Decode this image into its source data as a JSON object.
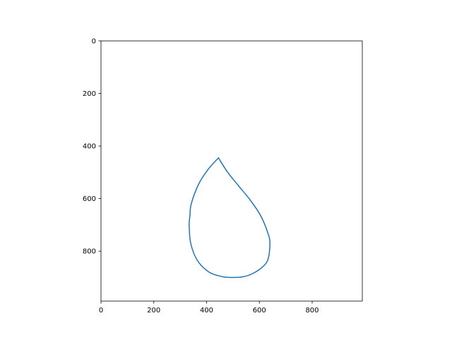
{
  "chart_data": {
    "type": "line",
    "title": "",
    "xlabel": "",
    "ylabel": "",
    "xlim": [
      0,
      990
    ],
    "ylim": [
      990,
      0
    ],
    "y_inverted": true,
    "grid": false,
    "xticks": [
      0,
      200,
      400,
      600,
      800
    ],
    "yticks": [
      0,
      200,
      400,
      600,
      800
    ],
    "xtick_labels": [
      "0",
      "200",
      "400",
      "600",
      "800"
    ],
    "ytick_labels": [
      "0",
      "200",
      "400",
      "600",
      "800"
    ],
    "series": [
      {
        "color": "#1f77b4",
        "x": [
          445,
          405,
          370,
          342,
          337,
          334,
          340,
          365,
          410,
          460,
          500,
          540,
          575,
          612,
          633,
          640,
          632,
          605,
          565,
          520,
          480,
          445
        ],
        "y": [
          445,
          490,
          545,
          620,
          665,
          700,
          770,
          835,
          880,
          897,
          900,
          897,
          885,
          860,
          830,
          770,
          730,
          665,
          605,
          550,
          500,
          445
        ]
      }
    ]
  }
}
